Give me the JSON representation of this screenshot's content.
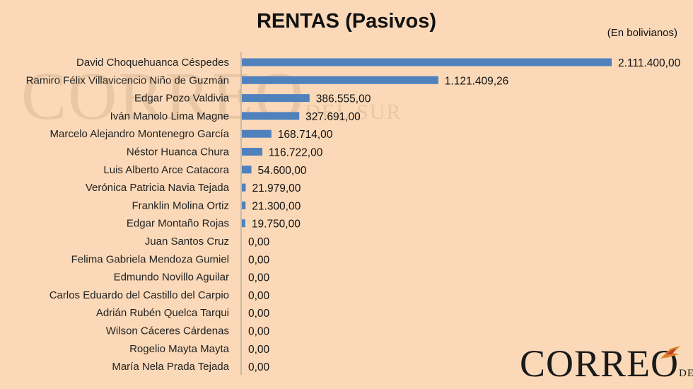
{
  "header": {
    "title": "RENTAS (Pasivos)",
    "subtitle": "(En bolivianos)"
  },
  "watermark": {
    "text": "CORREO",
    "sub": "DEL SUR"
  },
  "logo": {
    "text": "CORREO",
    "sub": "DEL SUR"
  },
  "colors": {
    "background": "#fbd9b8",
    "bar": "#4f81bd",
    "text": "#222222",
    "axis": "#999999"
  },
  "chart_data": {
    "type": "bar",
    "orientation": "horizontal",
    "title": "RENTAS (Pasivos)",
    "subtitle": "(En bolivianos)",
    "xlim": [
      0,
      2111400
    ],
    "grid": false,
    "legend": "none",
    "categories": [
      "David Choquehuanca Céspedes",
      "Ramiro Félix Villavicencio Niño de Guzmán",
      "Edgar Pozo Valdivia",
      "Iván Manolo Lima Magne",
      "Marcelo Alejandro Montenegro García",
      "Néstor Huanca Chura",
      "Luis Alberto Arce Catacora",
      "Verónica Patricia Navia Tejada",
      "Franklin Molina Ortiz",
      "Edgar Montaño Rojas",
      "Juan Santos Cruz",
      "Felima Gabriela Mendoza Gumiel",
      "Edmundo Novillo Aguilar",
      "Carlos Eduardo del Castillo del Carpio",
      "Adrián Rubén Quelca Tarqui",
      "Wilson Cáceres Cárdenas",
      "Rogelio Mayta Mayta",
      "María Nela Prada Tejada"
    ],
    "values": [
      2111400.0,
      1121409.26,
      386555.0,
      327691.0,
      168714.0,
      116722.0,
      54600.0,
      21979.0,
      21300.0,
      19750.0,
      0,
      0,
      0,
      0,
      0,
      0,
      0,
      0
    ],
    "data_labels": [
      "2.111.400,00",
      "1.121.409,26",
      "386.555,00",
      "327.691,00",
      "168.714,00",
      "116.722,00",
      "54.600,00",
      "21.979,00",
      "21.300,00",
      "19.750,00",
      "0,00",
      "0,00",
      "0,00",
      "0,00",
      "0,00",
      "0,00",
      "0,00",
      "0,00"
    ]
  }
}
